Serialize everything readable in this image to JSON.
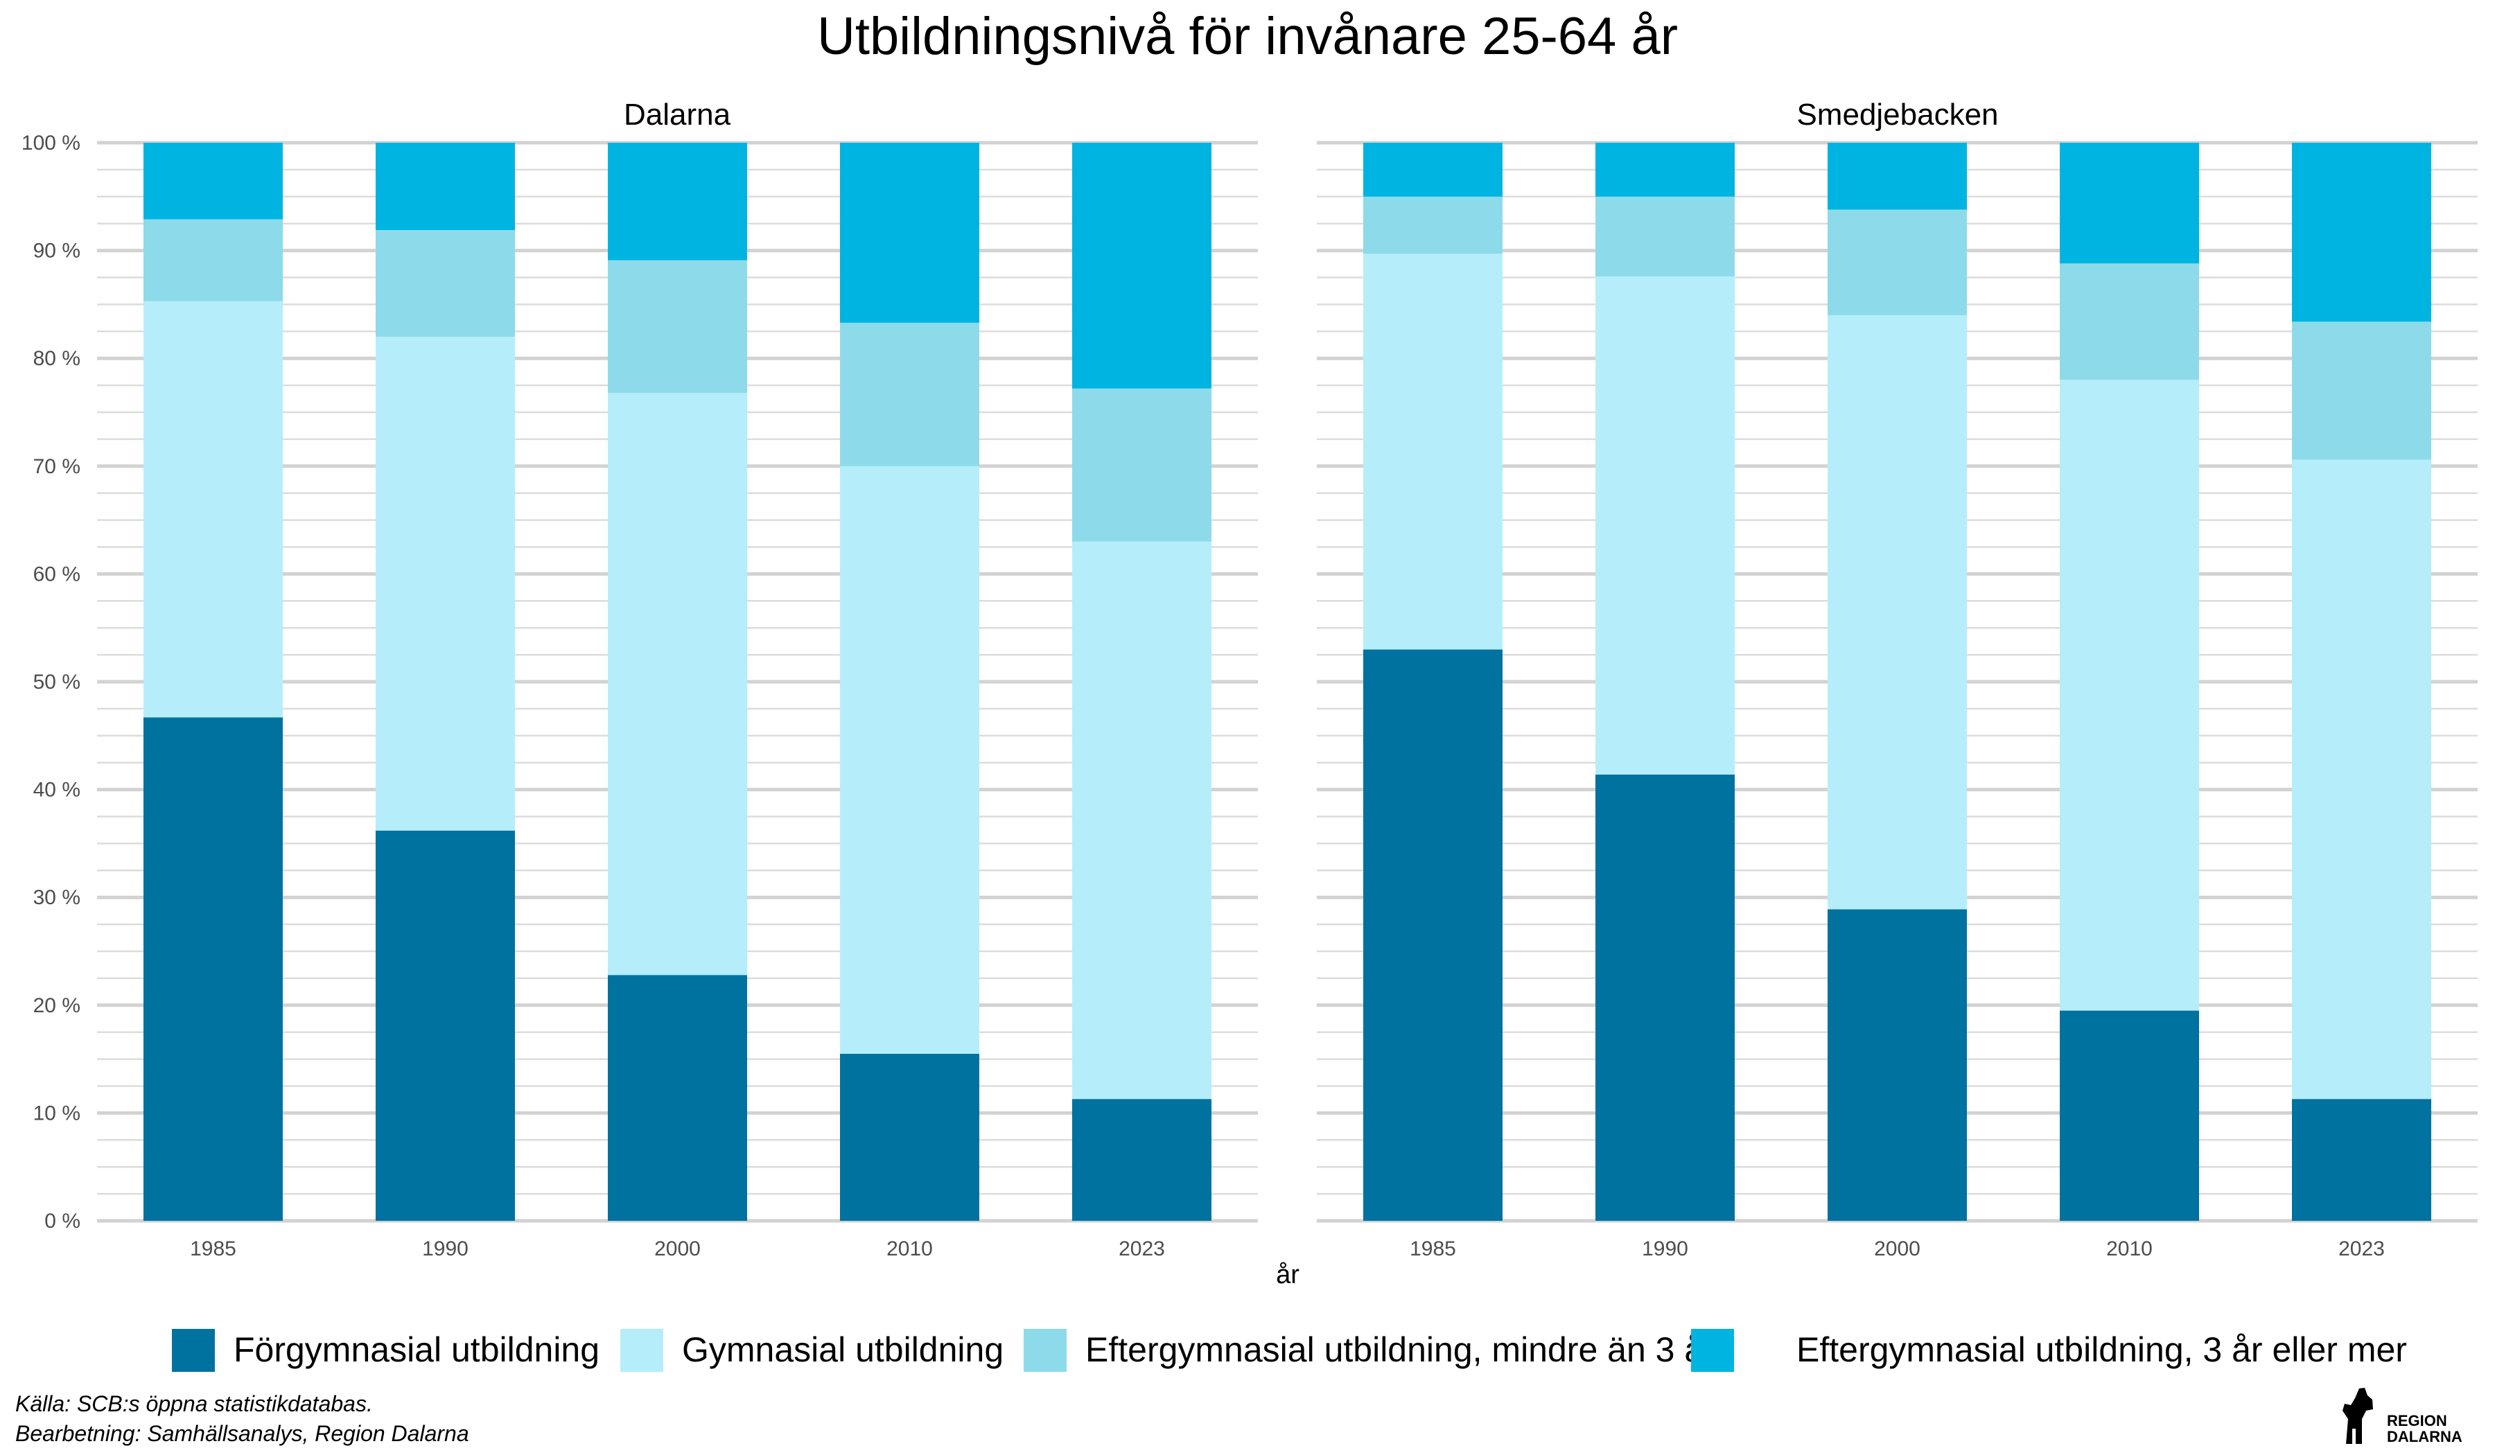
{
  "title": "Utbildningsnivå för invånare 25-64 år",
  "caption": {
    "line1": "Källa: SCB:s öppna statistikdatabas.",
    "line2": "Bearbetning: Samhällsanalys, Region Dalarna"
  },
  "logo": {
    "icon": "dala-horse-icon",
    "line1": "REGION",
    "line2": "DALARNA"
  },
  "colors": {
    "forgymnasial": "#0072A0",
    "gymnasial": "#B5EEFA",
    "eftergymnasial_lt3": "#8DDBEA",
    "eftergymnasial_3plus": "#00B4E2",
    "grid_major": "#D2D2D2",
    "grid_minor": "#DCDCDC"
  },
  "chart_data": {
    "type": "bar",
    "stacked": true,
    "title": "Utbildningsnivå för invånare 25-64 år",
    "xlabel": "år",
    "ylabel": "",
    "ylim": [
      0,
      100
    ],
    "y_ticks": [
      "0 %",
      "10 %",
      "20 %",
      "30 %",
      "40 %",
      "50 %",
      "60 %",
      "70 %",
      "80 %",
      "90 %",
      "100 %"
    ],
    "categories": [
      "1985",
      "1990",
      "2000",
      "2010",
      "2023"
    ],
    "legend_position": "bottom",
    "legend": [
      "Förgymnasial utbildning",
      "Gymnasial utbildning",
      "Eftergymnasial utbildning, mindre än 3 år",
      "Eftergymnasial utbildning, 3 år eller mer"
    ],
    "facets": [
      {
        "name": "Dalarna",
        "series": [
          {
            "name": "Förgymnasial utbildning",
            "values": [
              46.7,
              36.2,
              22.8,
              15.5,
              11.3
            ]
          },
          {
            "name": "Gymnasial utbildning",
            "values": [
              38.6,
              45.8,
              54.0,
              54.5,
              51.7
            ]
          },
          {
            "name": "Eftergymnasial utbildning, mindre än 3 år",
            "values": [
              7.6,
              9.9,
              12.3,
              13.3,
              14.2
            ]
          },
          {
            "name": "Eftergymnasial utbildning, 3 år eller mer",
            "values": [
              7.1,
              8.1,
              10.9,
              16.7,
              22.8
            ]
          }
        ]
      },
      {
        "name": "Smedjebacken",
        "series": [
          {
            "name": "Förgymnasial utbildning",
            "values": [
              53.0,
              41.4,
              28.9,
              19.5,
              11.3
            ]
          },
          {
            "name": "Gymnasial utbildning",
            "values": [
              36.7,
              46.2,
              55.1,
              58.5,
              59.3
            ]
          },
          {
            "name": "Eftergymnasial utbildning, mindre än 3 år",
            "values": [
              5.3,
              7.4,
              9.8,
              10.8,
              12.8
            ]
          },
          {
            "name": "Eftergymnasial utbildning, 3 år eller mer",
            "values": [
              5.0,
              5.0,
              6.2,
              11.2,
              16.6
            ]
          }
        ]
      }
    ]
  }
}
